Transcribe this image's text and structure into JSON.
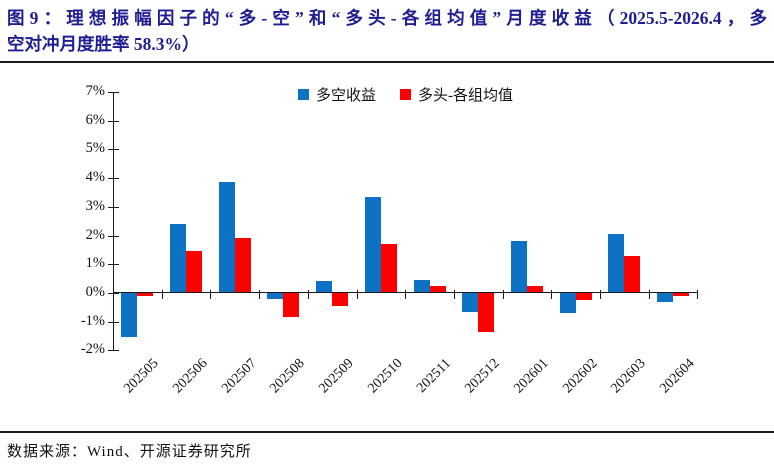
{
  "title": {
    "line1": "图9：理想振幅因子的“多-空”和“多头-各组均值”月度收益（2025.5-2026.4，多",
    "line2": "空对冲月度胜率 58.3%）",
    "full": "图9：理想振幅因子的“多-空”和“多头-各组均值”月度收益（2025.5-2026.4，多空对冲月度胜率 58.3%）"
  },
  "chart_data": {
    "type": "bar",
    "title": "理想振幅因子的“多-空”和“多头-各组均值”月度收益（2025.5-2026.4，多空对冲月度胜率 58.3%）",
    "categories": [
      "202505",
      "202506",
      "202507",
      "202508",
      "202509",
      "202510",
      "202511",
      "202512",
      "202601",
      "202602",
      "202603",
      "202604"
    ],
    "series": [
      {
        "name": "多空收益",
        "color": "#0e72c4",
        "values": [
          -1.55,
          2.4,
          3.85,
          -0.2,
          0.4,
          3.35,
          0.45,
          -0.65,
          1.8,
          -0.7,
          2.05,
          -0.3
        ]
      },
      {
        "name": "多头-各组均值",
        "color": "#ff0000",
        "values": [
          -0.1,
          1.45,
          1.9,
          -0.85,
          -0.45,
          1.7,
          0.25,
          -1.35,
          0.25,
          -0.25,
          1.3,
          -0.1
        ]
      }
    ],
    "xlabel": "",
    "ylabel": "",
    "ylim": [
      -2,
      7
    ],
    "ytick_step": 1,
    "ytick_labels": [
      "7%",
      "6%",
      "5%",
      "4%",
      "3%",
      "2%",
      "1%",
      "0%",
      "-1%",
      "-2%"
    ],
    "unit_suffix": "%",
    "grid": false,
    "legend_position": "top-center"
  },
  "footer": {
    "source": "数据来源：Wind、开源证券研究所"
  }
}
